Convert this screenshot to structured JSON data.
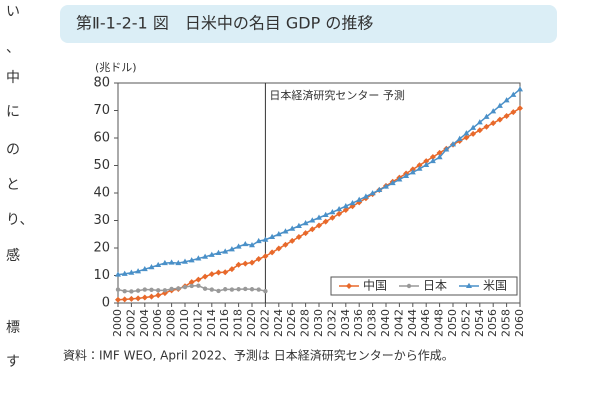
{
  "margin_text": [
    "い",
    "、",
    "中",
    "に",
    "の",
    "と",
    "り、",
    "感",
    "標",
    "す"
  ],
  "header": {
    "title": "第Ⅱ-1-2-1 図　日米中の名目 GDP の推移"
  },
  "source": "資料：IMF WEO, April 2022、予測は 日本経済研究センターから作成。",
  "chart_data": {
    "type": "line",
    "y_label": "(兆ドル)",
    "annotation": "日本経済研究センター 予測",
    "annotation_x": 2022,
    "legend": "bottom-right",
    "x": [
      2000,
      2001,
      2002,
      2003,
      2004,
      2005,
      2006,
      2007,
      2008,
      2009,
      2010,
      2011,
      2012,
      2013,
      2014,
      2015,
      2016,
      2017,
      2018,
      2019,
      2020,
      2021,
      2022,
      2023,
      2024,
      2025,
      2026,
      2027,
      2028,
      2029,
      2030,
      2031,
      2032,
      2033,
      2034,
      2035,
      2036,
      2037,
      2038,
      2039,
      2040,
      2041,
      2042,
      2043,
      2044,
      2045,
      2046,
      2047,
      2048,
      2049,
      2050,
      2051,
      2052,
      2053,
      2054,
      2055,
      2056,
      2057,
      2058,
      2059,
      2060
    ],
    "series": [
      {
        "name": "中国",
        "color": "#e8692b",
        "marker": "diamond",
        "values": [
          1.2,
          1.3,
          1.5,
          1.7,
          2.0,
          2.3,
          2.8,
          3.6,
          4.6,
          5.1,
          6.1,
          7.6,
          8.5,
          9.6,
          10.5,
          11.1,
          11.2,
          12.3,
          13.9,
          14.3,
          14.7,
          16.0,
          17.0,
          18.4,
          19.8,
          21.2,
          22.6,
          24.0,
          25.4,
          26.8,
          28.2,
          29.6,
          31.0,
          32.4,
          33.8,
          35.2,
          36.6,
          38.1,
          39.6,
          41.1,
          42.6,
          44.1,
          45.6,
          47.1,
          48.6,
          50.1,
          51.6,
          53.1,
          54.6,
          56.1,
          57.6,
          58.9,
          60.2,
          61.5,
          62.8,
          64.1,
          65.4,
          66.7,
          68.0,
          69.4,
          70.8
        ]
      },
      {
        "name": "日本",
        "color": "#999999",
        "marker": "circle",
        "values": [
          4.9,
          4.3,
          4.2,
          4.5,
          4.9,
          4.8,
          4.6,
          4.6,
          5.1,
          5.3,
          5.8,
          6.2,
          6.3,
          5.2,
          4.9,
          4.4,
          5.0,
          4.9,
          5.0,
          5.1,
          5.0,
          4.9,
          4.3,
          null,
          null,
          null,
          null,
          null,
          null,
          null,
          null,
          null,
          null,
          null,
          null,
          null,
          null,
          null,
          null,
          null,
          null,
          null,
          null,
          null,
          null,
          null,
          null,
          null,
          null,
          null,
          null,
          null,
          null,
          null,
          null,
          null,
          null,
          null,
          null,
          null,
          null
        ]
      },
      {
        "name": "米国",
        "color": "#4a90c8",
        "marker": "triangle",
        "values": [
          10.3,
          10.6,
          11.0,
          11.5,
          12.3,
          13.0,
          13.8,
          14.5,
          14.7,
          14.5,
          15.0,
          15.5,
          16.2,
          16.8,
          17.5,
          18.2,
          18.7,
          19.5,
          20.5,
          21.4,
          21.0,
          22.5,
          23.0,
          24.0,
          25.0,
          26.0,
          27.0,
          28.0,
          29.0,
          30.0,
          31.0,
          32.0,
          33.0,
          34.1,
          35.2,
          36.3,
          37.5,
          38.7,
          39.9,
          41.1,
          42.3,
          43.6,
          44.9,
          46.2,
          47.5,
          48.8,
          50.2,
          51.6,
          53.0,
          55.8,
          57.7,
          59.7,
          61.7,
          63.7,
          65.7,
          67.7,
          69.7,
          71.7,
          73.7,
          75.7,
          77.7
        ]
      }
    ],
    "xlim": [
      2000,
      2060
    ],
    "xticks": [
      2000,
      2002,
      2004,
      2006,
      2008,
      2010,
      2012,
      2014,
      2016,
      2018,
      2020,
      2022,
      2024,
      2026,
      2028,
      2030,
      2032,
      2034,
      2036,
      2038,
      2040,
      2042,
      2044,
      2046,
      2048,
      2050,
      2052,
      2054,
      2056,
      2058,
      2060
    ],
    "ylim": [
      0,
      80
    ],
    "yticks": [
      0,
      10,
      20,
      30,
      40,
      50,
      60,
      70,
      80
    ],
    "grid": false
  }
}
